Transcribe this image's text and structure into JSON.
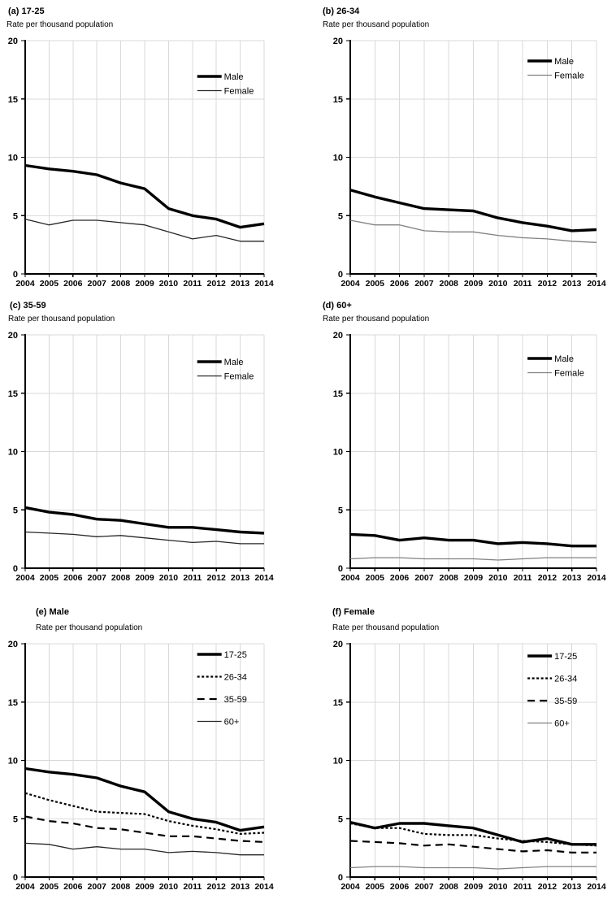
{
  "page": {
    "subtitle_text": "Rate per thousand population"
  },
  "palette": {
    "axis_color": "#000000",
    "grid_color": "#d9d9d9",
    "thick_line_color": "#000000",
    "thin_line_color_left": "#262626",
    "thin_line_color_right": "#808080"
  },
  "chart_data": [
    {
      "id": "a",
      "type": "line",
      "title": "(a) 17-25",
      "subtitle": "Rate per thousand population",
      "categories": [
        2004,
        2005,
        2006,
        2007,
        2008,
        2009,
        2010,
        2011,
        2012,
        2013,
        2014
      ],
      "ylim": [
        0,
        20
      ],
      "yticks": [
        0,
        5,
        10,
        15,
        20
      ],
      "grid": true,
      "legend_position": "inside-top-right",
      "series": [
        {
          "name": "Male",
          "style": "thick",
          "color": "#000000",
          "values": [
            9.3,
            9.0,
            8.8,
            8.5,
            7.8,
            7.3,
            5.6,
            5.0,
            4.7,
            4.0,
            4.3
          ]
        },
        {
          "name": "Female",
          "style": "thin",
          "color": "#262626",
          "values": [
            4.7,
            4.2,
            4.6,
            4.6,
            4.4,
            4.2,
            3.6,
            3.0,
            3.3,
            2.8,
            2.8
          ]
        }
      ]
    },
    {
      "id": "b",
      "type": "line",
      "title": "(b) 26-34",
      "subtitle": "Rate per thousand population",
      "categories": [
        2004,
        2005,
        2006,
        2007,
        2008,
        2009,
        2010,
        2011,
        2012,
        2013,
        2014
      ],
      "ylim": [
        0,
        20
      ],
      "yticks": [
        0,
        5,
        10,
        15,
        20
      ],
      "grid": true,
      "legend_position": "inside-top-right",
      "series": [
        {
          "name": "Male",
          "style": "thick",
          "color": "#000000",
          "values": [
            7.2,
            6.6,
            6.1,
            5.6,
            5.5,
            5.4,
            4.8,
            4.4,
            4.1,
            3.7,
            3.8
          ]
        },
        {
          "name": "Female",
          "style": "thin",
          "color": "#808080",
          "values": [
            4.6,
            4.2,
            4.2,
            3.7,
            3.6,
            3.6,
            3.3,
            3.1,
            3.0,
            2.8,
            2.7
          ]
        }
      ]
    },
    {
      "id": "c",
      "type": "line",
      "title": "(c) 35-59",
      "subtitle": "Rate per thousand population",
      "categories": [
        2004,
        2005,
        2006,
        2007,
        2008,
        2009,
        2010,
        2011,
        2012,
        2013,
        2014
      ],
      "ylim": [
        0,
        20
      ],
      "yticks": [
        0,
        5,
        10,
        15,
        20
      ],
      "grid": true,
      "legend_position": "inside-top-right",
      "series": [
        {
          "name": "Male",
          "style": "thick",
          "color": "#000000",
          "values": [
            5.2,
            4.8,
            4.6,
            4.2,
            4.1,
            3.8,
            3.5,
            3.5,
            3.3,
            3.1,
            3.0
          ]
        },
        {
          "name": "Female",
          "style": "thin",
          "color": "#262626",
          "values": [
            3.1,
            3.0,
            2.9,
            2.7,
            2.8,
            2.6,
            2.4,
            2.2,
            2.3,
            2.1,
            2.1
          ]
        }
      ]
    },
    {
      "id": "d",
      "type": "line",
      "title": "(d) 60+",
      "subtitle": "Rate per thousand population",
      "categories": [
        2004,
        2005,
        2006,
        2007,
        2008,
        2009,
        2010,
        2011,
        2012,
        2013,
        2014
      ],
      "ylim": [
        0,
        20
      ],
      "yticks": [
        0,
        5,
        10,
        15,
        20
      ],
      "grid": true,
      "legend_position": "inside-top-right",
      "series": [
        {
          "name": "Male",
          "style": "thick",
          "color": "#000000",
          "values": [
            2.9,
            2.8,
            2.4,
            2.6,
            2.4,
            2.4,
            2.1,
            2.2,
            2.1,
            1.9,
            1.9
          ]
        },
        {
          "name": "Female",
          "style": "thin",
          "color": "#808080",
          "values": [
            0.8,
            0.9,
            0.9,
            0.8,
            0.8,
            0.8,
            0.7,
            0.8,
            0.9,
            0.9,
            0.9
          ]
        }
      ]
    },
    {
      "id": "e",
      "type": "line",
      "title": "(e) Male",
      "subtitle": "Rate per thousand population",
      "categories": [
        2004,
        2005,
        2006,
        2007,
        2008,
        2009,
        2010,
        2011,
        2012,
        2013,
        2014
      ],
      "ylim": [
        0,
        20
      ],
      "yticks": [
        0,
        5,
        10,
        15,
        20
      ],
      "grid": true,
      "legend_position": "inside-top-right",
      "series": [
        {
          "name": "17-25",
          "style": "thick",
          "color": "#000000",
          "values": [
            9.3,
            9.0,
            8.8,
            8.5,
            7.8,
            7.3,
            5.6,
            5.0,
            4.7,
            4.0,
            4.3
          ]
        },
        {
          "name": "26-34",
          "style": "dotted",
          "color": "#000000",
          "values": [
            7.2,
            6.6,
            6.1,
            5.6,
            5.5,
            5.4,
            4.8,
            4.4,
            4.1,
            3.7,
            3.8
          ]
        },
        {
          "name": "35-59",
          "style": "dashed",
          "color": "#000000",
          "values": [
            5.2,
            4.8,
            4.6,
            4.2,
            4.1,
            3.8,
            3.5,
            3.5,
            3.3,
            3.1,
            3.0
          ]
        },
        {
          "name": "60+",
          "style": "thin",
          "color": "#262626",
          "values": [
            2.9,
            2.8,
            2.4,
            2.6,
            2.4,
            2.4,
            2.1,
            2.2,
            2.1,
            1.9,
            1.9
          ]
        }
      ]
    },
    {
      "id": "f",
      "type": "line",
      "title": "(f) Female",
      "subtitle": "Rate per thousand population",
      "categories": [
        2004,
        2005,
        2006,
        2007,
        2008,
        2009,
        2010,
        2011,
        2012,
        2013,
        2014
      ],
      "ylim": [
        0,
        20
      ],
      "yticks": [
        0,
        5,
        10,
        15,
        20
      ],
      "grid": true,
      "legend_position": "inside-top-right",
      "series": [
        {
          "name": "17-25",
          "style": "thick",
          "color": "#000000",
          "values": [
            4.7,
            4.2,
            4.6,
            4.6,
            4.4,
            4.2,
            3.6,
            3.0,
            3.3,
            2.8,
            2.8
          ]
        },
        {
          "name": "26-34",
          "style": "dotted",
          "color": "#000000",
          "values": [
            4.6,
            4.2,
            4.2,
            3.7,
            3.6,
            3.6,
            3.3,
            3.1,
            3.0,
            2.8,
            2.7
          ]
        },
        {
          "name": "35-59",
          "style": "dashed",
          "color": "#000000",
          "values": [
            3.1,
            3.0,
            2.9,
            2.7,
            2.8,
            2.6,
            2.4,
            2.2,
            2.3,
            2.1,
            2.1
          ]
        },
        {
          "name": "60+",
          "style": "thin",
          "color": "#808080",
          "values": [
            0.8,
            0.9,
            0.9,
            0.8,
            0.8,
            0.8,
            0.7,
            0.8,
            0.9,
            0.9,
            0.9
          ]
        }
      ]
    }
  ]
}
